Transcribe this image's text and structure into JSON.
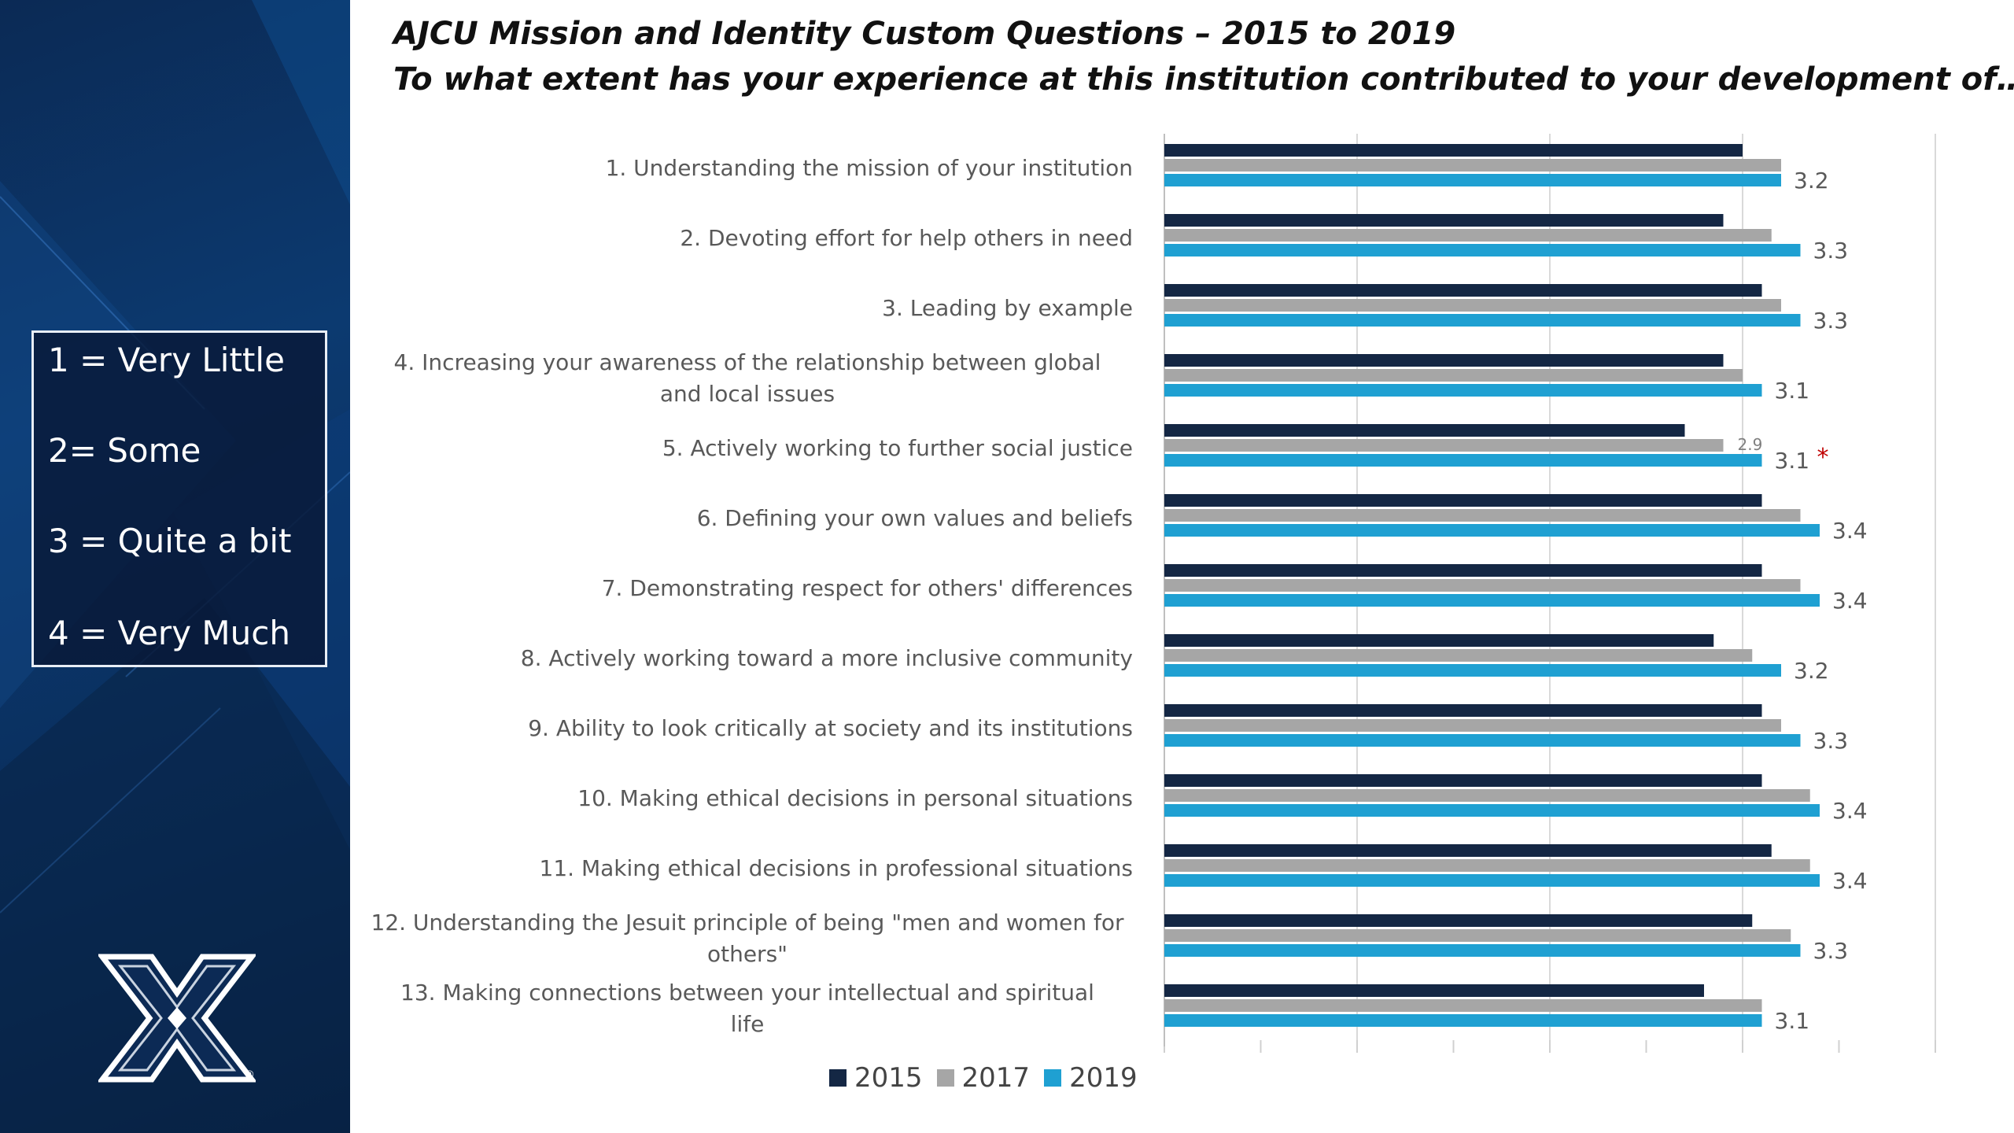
{
  "title": {
    "line1": "AJCU Mission and Identity Custom Questions – 2015 to 2019",
    "line2": "To what extent has your experience at this institution contributed to your development of…"
  },
  "scale_key": [
    "1 = Very Little",
    "2= Some",
    "3 = Quite a bit",
    "4 = Very Much"
  ],
  "logo": {
    "icon": "xavier-x-logo-icon",
    "registered_mark": "®"
  },
  "colors": {
    "sidebar": "#0b2e5c",
    "s2015": "#142744",
    "s2017": "#a6a6a6",
    "s2019": "#1fa0d2",
    "asterisk": "#c00000"
  },
  "chart_data": {
    "type": "bar",
    "orientation": "horizontal",
    "categories": [
      "1. Understanding the mission of your institution",
      "2. Devoting effort for help others in need",
      "3. Leading by example",
      "4. Increasing your awareness of the relationship between global and local issues",
      "5. Actively working to further social justice",
      "6. Defining your own values and beliefs",
      "7. Demonstrating respect for others' differences",
      "8. Actively working toward a more inclusive community",
      "9. Ability to look critically at society and its institutions",
      "10. Making ethical decisions in personal situations",
      "11. Making ethical decisions in professional situations",
      "12. Understanding the Jesuit principle of being \"men and women for others\"",
      "13. Making connections between your intellectual and spiritual life"
    ],
    "series": [
      {
        "name": "2015",
        "values": [
          3.0,
          2.9,
          3.1,
          2.9,
          2.7,
          3.1,
          3.1,
          2.85,
          3.1,
          3.1,
          3.15,
          3.05,
          2.8
        ]
      },
      {
        "name": "2017",
        "values": [
          3.2,
          3.15,
          3.2,
          3.0,
          2.9,
          3.3,
          3.3,
          3.05,
          3.2,
          3.35,
          3.35,
          3.25,
          3.1
        ]
      },
      {
        "name": "2019",
        "values": [
          3.2,
          3.3,
          3.3,
          3.1,
          3.1,
          3.4,
          3.4,
          3.2,
          3.3,
          3.4,
          3.4,
          3.3,
          3.1
        ]
      }
    ],
    "data_labels_2019": [
      "3.2",
      "3.3",
      "3.3",
      "3.1",
      "3.1",
      "3.4",
      "3.4",
      "3.2",
      "3.3",
      "3.4",
      "3.4",
      "3.3",
      "3.1"
    ],
    "extra_labels": {
      "q5_2017": "2.9",
      "q5_significance": "*"
    },
    "xlim": [
      0,
      4
    ],
    "grid": true,
    "legend_position": "bottom"
  }
}
